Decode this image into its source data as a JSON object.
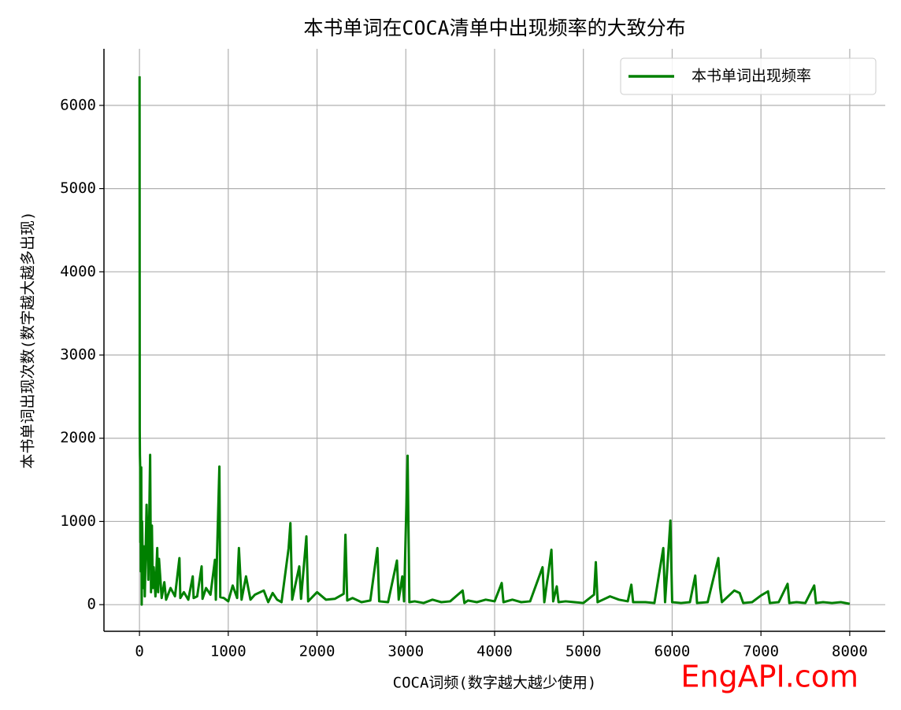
{
  "chart_data": {
    "type": "line",
    "title": "本书单词在COCA清单中出现频率的大致分布",
    "x_label": "COCA词频(数字越大越少使用)",
    "y_label": "本书单词出现次数(数字越大越多出现)",
    "watermark": "EngAPI.com",
    "xlim": [
      -400,
      8400
    ],
    "ylim": [
      -320,
      6680
    ],
    "xticks": [
      0,
      1000,
      2000,
      3000,
      4000,
      5000,
      6000,
      7000,
      8000
    ],
    "yticks": [
      0,
      1000,
      2000,
      3000,
      4000,
      5000,
      6000
    ],
    "grid": true,
    "legend": "upper right",
    "x": [
      1,
      2,
      3,
      5,
      8,
      10,
      12,
      15,
      20,
      25,
      30,
      40,
      50,
      60,
      80,
      100,
      120,
      130,
      140,
      150,
      160,
      180,
      200,
      210,
      220,
      250,
      280,
      300,
      350,
      400,
      450,
      460,
      500,
      550,
      600,
      610,
      650,
      700,
      710,
      750,
      800,
      850,
      860,
      900,
      910,
      950,
      1000,
      1050,
      1100,
      1110,
      1120,
      1150,
      1200,
      1250,
      1300,
      1400,
      1450,
      1500,
      1550,
      1600,
      1680,
      1700,
      1720,
      1800,
      1820,
      1880,
      1900,
      2000,
      2100,
      2200,
      2300,
      2320,
      2340,
      2400,
      2500,
      2600,
      2680,
      2700,
      2800,
      2900,
      2920,
      2960,
      2980,
      3020,
      3040,
      3100,
      3200,
      3300,
      3400,
      3500,
      3640,
      3660,
      3700,
      3800,
      3900,
      4000,
      4080,
      4100,
      4200,
      4300,
      4400,
      4540,
      4560,
      4640,
      4660,
      4700,
      4720,
      4800,
      4900,
      5000,
      5120,
      5140,
      5160,
      5300,
      5400,
      5500,
      5540,
      5560,
      5700,
      5800,
      5900,
      5920,
      5980,
      6000,
      6100,
      6200,
      6260,
      6280,
      6400,
      6520,
      6540,
      6560,
      6700,
      6760,
      6800,
      6900,
      7000,
      7080,
      7100,
      7200,
      7300,
      7320,
      7400,
      7500,
      7600,
      7620,
      7700,
      7800,
      7900,
      8000
    ],
    "series": [
      {
        "name": "本书单词出现频率",
        "color": "#008000",
        "values": [
          6350,
          4050,
          2100,
          1800,
          1650,
          750,
          1500,
          400,
          1650,
          0,
          1000,
          200,
          700,
          100,
          1200,
          300,
          1800,
          150,
          950,
          200,
          450,
          100,
          680,
          150,
          550,
          80,
          270,
          60,
          200,
          100,
          560,
          80,
          150,
          60,
          340,
          80,
          100,
          460,
          70,
          200,
          120,
          540,
          60,
          1660,
          90,
          80,
          40,
          230,
          80,
          450,
          680,
          60,
          340,
          60,
          120,
          170,
          30,
          140,
          60,
          30,
          680,
          980,
          60,
          460,
          70,
          820,
          40,
          150,
          60,
          70,
          130,
          840,
          50,
          80,
          30,
          50,
          680,
          40,
          30,
          530,
          60,
          340,
          40,
          1790,
          30,
          40,
          20,
          60,
          30,
          40,
          170,
          20,
          50,
          30,
          60,
          40,
          260,
          30,
          60,
          30,
          40,
          450,
          30,
          660,
          40,
          220,
          30,
          40,
          30,
          20,
          120,
          510,
          30,
          100,
          60,
          40,
          240,
          30,
          30,
          20,
          680,
          30,
          1010,
          30,
          20,
          30,
          350,
          20,
          30,
          560,
          200,
          30,
          170,
          140,
          20,
          30,
          110,
          160,
          20,
          30,
          250,
          20,
          30,
          20,
          230,
          20,
          30,
          20,
          30,
          10
        ]
      }
    ]
  }
}
